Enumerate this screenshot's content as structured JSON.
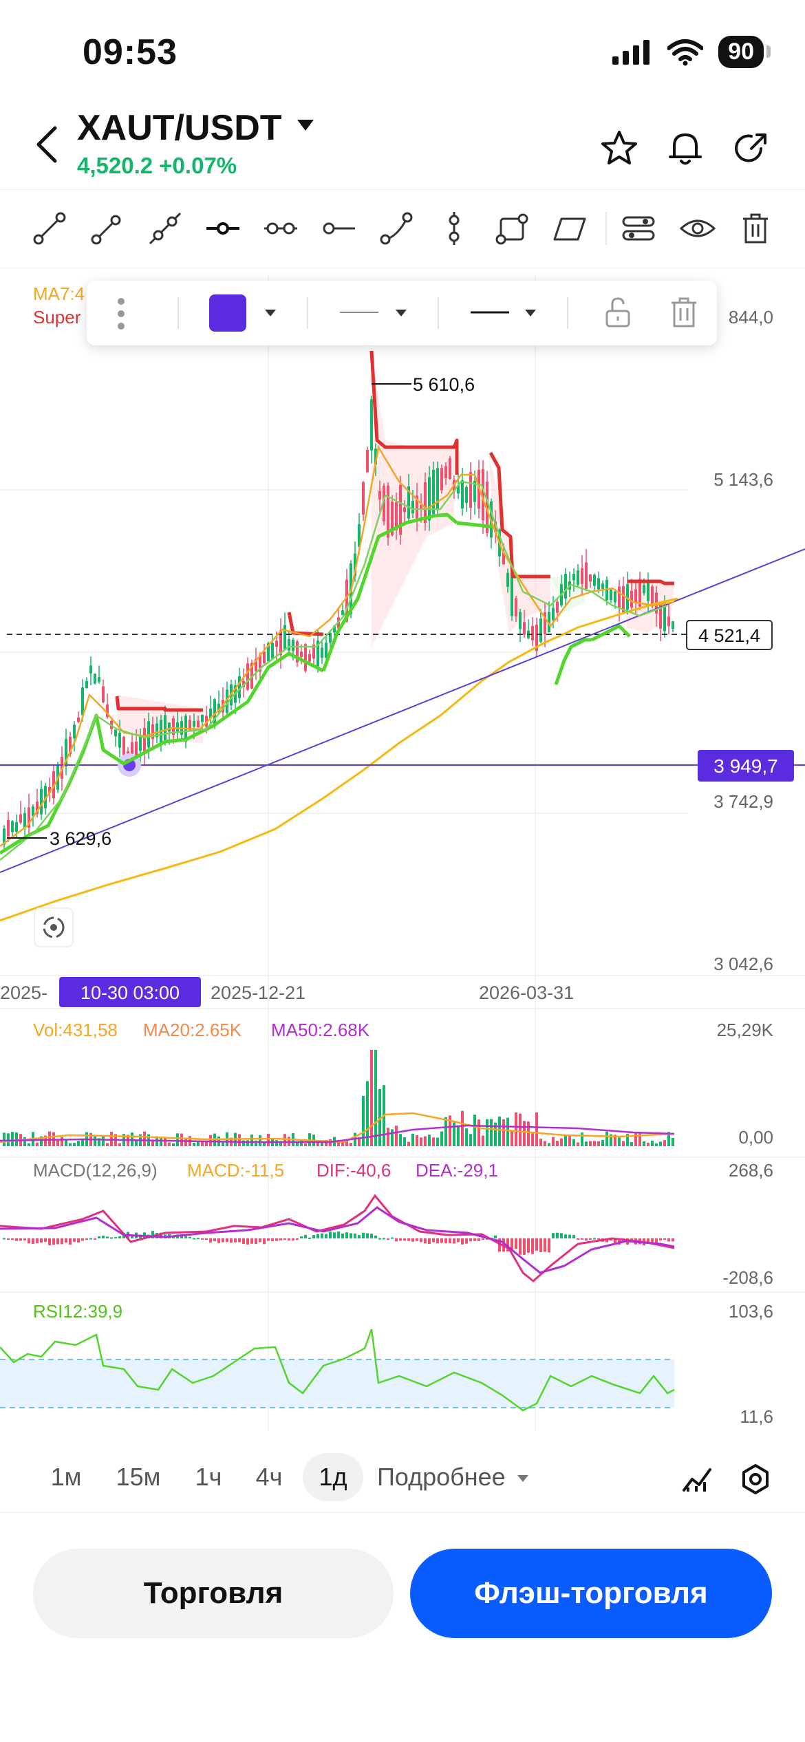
{
  "status": {
    "time": "09:53",
    "battery": "90"
  },
  "header": {
    "pair": "XAUT/USDT",
    "price_change": "4,520.2 +0.07%"
  },
  "overlay_legend": {
    "ma": "MA7:4",
    "super": "Super"
  },
  "price_axis": {
    "p1": "844,0",
    "p2": "5 143,6",
    "p3": "3 742,9",
    "p4": "3 042,6"
  },
  "labels": {
    "high": "5 610,6",
    "low": "3 629,6",
    "current": "4 521,4",
    "drawn_line": "3 949,7",
    "crosshair_date": "10-30 03:00",
    "date_left": "2025-",
    "date_mid": "2025-12-21",
    "date_right": "2026-03-31"
  },
  "volume": {
    "vol": "Vol:431,58",
    "ma20": "MA20:2.65K",
    "ma50": "MA50:2.68K",
    "axis_top": "25,29K",
    "axis_bottom": "0,00"
  },
  "macd": {
    "title": "MACD(12,26,9)",
    "macd": "MACD:-11,5",
    "dif": "DIF:-40,6",
    "dea": "DEA:-29,1",
    "axis_top": "268,6",
    "axis_bottom": "-208,6"
  },
  "rsi": {
    "title": "RSI12:39,9",
    "axis_top": "103,6",
    "axis_bottom": "11,6"
  },
  "timeframes": {
    "tf1": "1м",
    "tf2": "15м",
    "tf3": "1ч",
    "tf4": "4ч",
    "tf5": "1д",
    "more": "Подробнее"
  },
  "actions": {
    "trade": "Торговля",
    "flash": "Флэш-торговля"
  },
  "colors": {
    "up": "#12b76a",
    "down": "#f0506e",
    "accent": "#5b2be0",
    "primary_button": "#0a5cff",
    "ma_orange": "#f5a623",
    "supertrend_red": "#e03030",
    "supertrend_green": "#52d62b"
  }
}
